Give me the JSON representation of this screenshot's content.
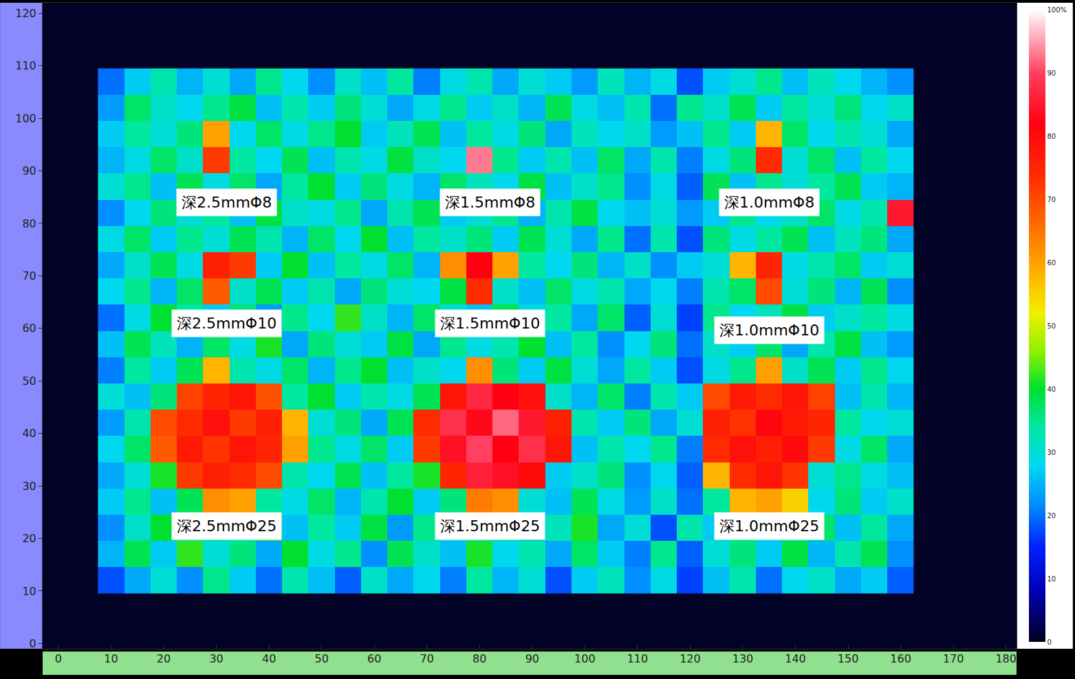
{
  "chart_data": {
    "type": "heatmap",
    "x": [
      10,
      15,
      20,
      25,
      30,
      35,
      40,
      45,
      50,
      55,
      60,
      65,
      70,
      75,
      80,
      85,
      90,
      95,
      100,
      105,
      110,
      115,
      120,
      125,
      130,
      135,
      140,
      145,
      150,
      155,
      160
    ],
    "y": [
      12,
      17,
      22,
      27,
      32,
      37,
      42,
      47,
      52,
      57,
      62,
      67,
      72,
      77,
      82,
      87,
      92,
      97,
      102,
      107
    ],
    "z": [
      [
        18,
        24,
        30,
        22,
        35,
        27,
        20,
        33,
        26,
        19,
        31,
        24,
        28,
        21,
        34,
        25,
        30,
        18,
        27,
        32,
        22,
        29,
        17,
        26,
        33,
        20,
        28,
        31,
        24,
        27,
        19
      ],
      [
        25,
        38,
        27,
        42,
        30,
        36,
        24,
        40,
        29,
        35,
        22,
        38,
        31,
        26,
        41,
        28,
        33,
        24,
        37,
        27,
        21,
        35,
        19,
        30,
        36,
        27,
        39,
        25,
        33,
        38,
        22
      ],
      [
        22,
        31,
        40,
        28,
        36,
        30,
        42,
        26,
        34,
        27,
        39,
        23,
        35,
        30,
        28,
        37,
        25,
        32,
        41,
        24,
        30,
        18,
        33,
        27,
        35,
        29,
        31,
        37,
        26,
        34,
        24
      ],
      [
        27,
        35,
        26,
        38,
        62,
        60,
        34,
        29,
        37,
        25,
        33,
        40,
        27,
        36,
        64,
        62,
        30,
        26,
        38,
        29,
        23,
        31,
        20,
        34,
        58,
        60,
        55,
        28,
        36,
        27,
        31
      ],
      [
        24,
        30,
        41,
        72,
        76,
        74,
        70,
        33,
        28,
        38,
        26,
        34,
        41,
        75,
        86,
        84,
        80,
        27,
        31,
        36,
        22,
        28,
        19,
        58,
        74,
        78,
        73,
        30,
        35,
        29,
        26
      ],
      [
        28,
        37,
        68,
        77,
        73,
        78,
        75,
        60,
        35,
        29,
        37,
        27,
        72,
        84,
        90,
        82,
        88,
        78,
        26,
        33,
        28,
        35,
        21,
        74,
        79,
        76,
        80,
        72,
        29,
        37,
        24
      ],
      [
        23,
        33,
        70,
        74,
        79,
        72,
        76,
        58,
        30,
        36,
        24,
        38,
        74,
        88,
        83,
        92,
        85,
        76,
        33,
        27,
        36,
        24,
        30,
        76,
        73,
        81,
        77,
        75,
        34,
        28,
        30
      ],
      [
        30,
        26,
        36,
        71,
        75,
        78,
        69,
        34,
        40,
        27,
        33,
        29,
        38,
        78,
        87,
        82,
        79,
        31,
        25,
        37,
        21,
        33,
        27,
        70,
        77,
        74,
        78,
        71,
        26,
        33,
        25
      ],
      [
        21,
        34,
        27,
        38,
        58,
        33,
        29,
        37,
        25,
        35,
        40,
        26,
        31,
        28,
        62,
        36,
        27,
        39,
        30,
        24,
        34,
        27,
        18,
        29,
        35,
        60,
        31,
        38,
        27,
        35,
        28
      ],
      [
        26,
        38,
        32,
        25,
        37,
        29,
        41,
        24,
        36,
        30,
        27,
        39,
        24,
        35,
        29,
        33,
        40,
        26,
        34,
        22,
        28,
        36,
        20,
        31,
        27,
        37,
        24,
        33,
        39,
        26,
        23
      ],
      [
        20,
        29,
        40,
        34,
        27,
        36,
        23,
        35,
        28,
        42,
        31,
        25,
        37,
        30,
        26,
        38,
        29,
        34,
        24,
        37,
        19,
        30,
        17,
        35,
        28,
        32,
        39,
        27,
        31,
        34,
        29
      ],
      [
        28,
        35,
        25,
        37,
        68,
        31,
        38,
        27,
        33,
        24,
        36,
        30,
        28,
        39,
        74,
        31,
        26,
        37,
        29,
        33,
        24,
        28,
        21,
        33,
        37,
        70,
        30,
        36,
        25,
        38,
        22
      ],
      [
        24,
        31,
        38,
        29,
        76,
        72,
        27,
        40,
        26,
        34,
        29,
        37,
        25,
        62,
        82,
        60,
        34,
        28,
        36,
        25,
        31,
        22,
        27,
        30,
        58,
        75,
        29,
        33,
        37,
        27,
        30
      ],
      [
        29,
        37,
        27,
        35,
        30,
        38,
        33,
        25,
        37,
        28,
        40,
        26,
        34,
        31,
        36,
        27,
        38,
        30,
        24,
        35,
        20,
        33,
        18,
        36,
        29,
        34,
        38,
        26,
        32,
        36,
        24
      ],
      [
        22,
        28,
        36,
        30,
        34,
        26,
        39,
        31,
        29,
        35,
        24,
        33,
        38,
        27,
        30,
        35,
        25,
        33,
        39,
        28,
        26,
        30,
        23,
        27,
        35,
        28,
        31,
        37,
        29,
        33,
        85
      ],
      [
        30,
        35,
        26,
        38,
        29,
        37,
        24,
        34,
        40,
        27,
        36,
        29,
        25,
        37,
        32,
        28,
        39,
        26,
        31,
        35,
        22,
        29,
        19,
        38,
        26,
        35,
        30,
        34,
        38,
        27,
        25
      ],
      [
        25,
        29,
        37,
        31,
        72,
        34,
        28,
        38,
        26,
        33,
        29,
        39,
        31,
        28,
        93,
        35,
        27,
        33,
        26,
        37,
        24,
        33,
        21,
        29,
        36,
        74,
        30,
        37,
        26,
        34,
        28
      ],
      [
        27,
        34,
        30,
        36,
        60,
        28,
        37,
        29,
        35,
        40,
        27,
        32,
        38,
        26,
        34,
        29,
        36,
        24,
        32,
        28,
        31,
        23,
        26,
        35,
        27,
        58,
        37,
        28,
        33,
        30,
        24
      ],
      [
        23,
        37,
        31,
        28,
        35,
        39,
        26,
        33,
        27,
        36,
        30,
        24,
        29,
        35,
        27,
        31,
        25,
        38,
        29,
        26,
        33,
        20,
        35,
        31,
        38,
        27,
        34,
        30,
        36,
        28,
        31
      ],
      [
        20,
        27,
        33,
        25,
        30,
        24,
        35,
        28,
        22,
        31,
        26,
        34,
        21,
        29,
        33,
        24,
        30,
        27,
        23,
        32,
        25,
        29,
        18,
        27,
        30,
        35,
        26,
        32,
        28,
        25,
        22
      ]
    ],
    "xlim": [
      -3,
      182
    ],
    "xticks": [
      0,
      10,
      20,
      30,
      40,
      50,
      60,
      70,
      80,
      90,
      100,
      110,
      120,
      130,
      140,
      150,
      160,
      170,
      180
    ],
    "ylim": [
      -1,
      122
    ],
    "yticks": [
      0,
      10,
      20,
      30,
      40,
      50,
      60,
      70,
      80,
      90,
      100,
      110,
      120
    ],
    "colorbar_range": [
      0,
      100
    ],
    "colorbar_ticks": [
      0,
      10,
      20,
      30,
      40,
      50,
      60,
      70,
      80,
      90,
      {
        "value": 100,
        "label": "100%"
      }
    ],
    "annotations": [
      {
        "text": "深2.5mmΦ8",
        "x": 32,
        "y": 84
      },
      {
        "text": "深1.5mmΦ8",
        "x": 82,
        "y": 84
      },
      {
        "text": "深1.0mmΦ8",
        "x": 135,
        "y": 84
      },
      {
        "text": "深2.5mmΦ10",
        "x": 32,
        "y": 61
      },
      {
        "text": "深1.5mmΦ10",
        "x": 82,
        "y": 61
      },
      {
        "text": "深1.0mmΦ10",
        "x": 135,
        "y": 59.6
      },
      {
        "text": "深2.5mmΦ25",
        "x": 32,
        "y": 22.3
      },
      {
        "text": "深1.5mmΦ25",
        "x": 82,
        "y": 22.3
      },
      {
        "text": "深1.0mmΦ25",
        "x": 135,
        "y": 22.3
      }
    ]
  }
}
